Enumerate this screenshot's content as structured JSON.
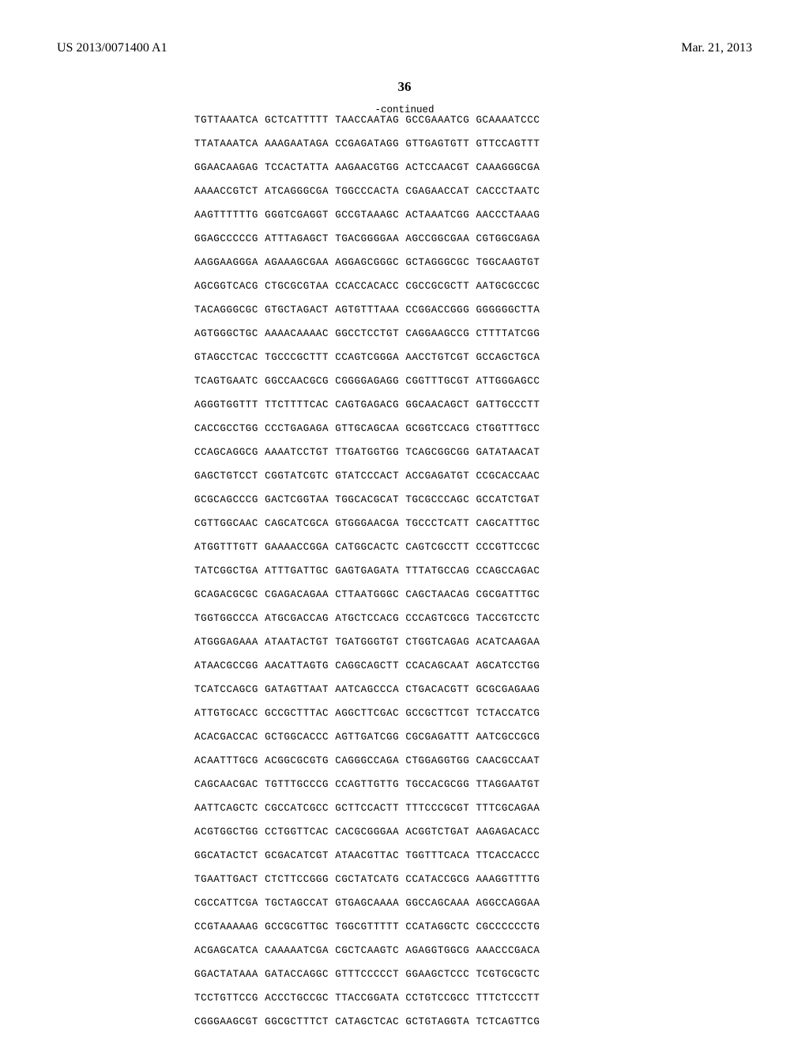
{
  "header": {
    "left": "US 2013/0071400 A1",
    "right": "Mar. 21, 2013"
  },
  "page_number": "36",
  "continued_label": "-continued",
  "sequence_lines": [
    "TGTTAAATCA GCTCATTTTT TAACCAATAG GCCGAAATCG GCAAAATCCC",
    "TTATAAATCA AAAGAATAGA CCGAGATAGG GTTGAGTGTT GTTCCAGTTT",
    "GGAACAAGAG TCCACTATTA AAGAACGTGG ACTCCAACGT CAAAGGGCGA",
    "AAAACCGTCT ATCAGGGCGA TGGCCCACTA CGAGAACCAT CACCCTAATC",
    "AAGTTTTTTG GGGTCGAGGT GCCGTAAAGC ACTAAATCGG AACCCTAAAG",
    "GGAGCCCCCG ATTTAGAGCT TGACGGGGAA AGCCGGCGAA CGTGGCGAGA",
    "AAGGAAGGGA AGAAAGCGAA AGGAGCGGGC GCTAGGGCGC TGGCAAGTGT",
    "AGCGGTCACG CTGCGCGTAA CCACCACACC CGCCGCGCTT AATGCGCCGC",
    "TACAGGGCGC GTGCTAGACT AGTGTTTAAA CCGGACCGGG GGGGGGCTTA",
    "AGTGGGCTGC AAAACAAAAC GGCCTCCTGT CAGGAAGCCG CTTTTATCGG",
    "GTAGCCTCAC TGCCCGCTTT CCAGTCGGGA AACCTGTCGT GCCAGCTGCA",
    "TCAGTGAATC GGCCAACGCG CGGGGAGAGG CGGTTTGCGT ATTGGGAGCC",
    "AGGGTGGTTT TTCTTTTCAC CAGTGAGACG GGCAACAGCT GATTGCCCTT",
    "CACCGCCTGG CCCTGAGAGA GTTGCAGCAA GCGGTCCACG CTGGTTTGCC",
    "CCAGCAGGCG AAAATCCTGT TTGATGGTGG TCAGCGGCGG GATATAACAT",
    "GAGCTGTCCT CGGTATCGTC GTATCCCACT ACCGAGATGT CCGCACCAAC",
    "GCGCAGCCCG GACTCGGTAA TGGCACGCAT TGCGCCCAGC GCCATCTGAT",
    "CGTTGGCAAC CAGCATCGCA GTGGGAACGA TGCCCTCATT CAGCATTTGC",
    "ATGGTTTGTT GAAAACCGGA CATGGCACTC CAGTCGCCTT CCCGTTCCGC",
    "TATCGGCTGA ATTTGATTGC GAGTGAGATA TTTATGCCAG CCAGCCAGAC",
    "GCAGACGCGC CGAGACAGAA CTTAATGGGC CAGCTAACAG CGCGATTTGC",
    "TGGTGGCCCA ATGCGACCAG ATGCTCCACG CCCAGTCGCG TACCGTCCTC",
    "ATGGGAGAAA ATAATACTGT TGATGGGTGT CTGGTCAGAG ACATCAAGAA",
    "ATAACGCCGG AACATTAGTG CAGGCAGCTT CCACAGCAAT AGCATCCTGG",
    "TCATCCAGCG GATAGTTAAT AATCAGCCCA CTGACACGTT GCGCGAGAAG",
    "ATTGTGCACC GCCGCTTTAC AGGCTTCGAC GCCGCTTCGT TCTACCATCG",
    "ACACGACCAC GCTGGCACCC AGTTGATCGG CGCGAGATTT AATCGCCGCG",
    "ACAATTTGCG ACGGCGCGTG CAGGGCCAGA CTGGAGGTGG CAACGCCAAT",
    "CAGCAACGAC TGTTTGCCCG CCAGTTGTTG TGCCACGCGG TTAGGAATGT",
    "AATTCAGCTC CGCCATCGCC GCTTCCACTT TTTCCCGCGT TTTCGCAGAA",
    "ACGTGGCTGG CCTGGTTCAC CACGCGGGAA ACGGTCTGAT AAGAGACACC",
    "GGCATACTCT GCGACATCGT ATAACGTTAC TGGTTTCACA TTCACCACCC",
    "TGAATTGACT CTCTTCCGGG CGCTATCATG CCATACCGCG AAAGGTTTTG",
    "CGCCATTCGA TGCTAGCCAT GTGAGCAAAA GGCCAGCAAA AGGCCAGGAA",
    "CCGTAAAAAG GCCGCGTTGC TGGCGTTTTT CCATAGGCTC CGCCCCCCTG",
    "ACGAGCATCA CAAAAATCGA CGCTCAAGTC AGAGGTGGCG AAACCCGACA",
    "GGACTATAAA GATACCAGGC GTTTCCCCCT GGAAGCTCCC TCGTGCGCTC",
    "TCCTGTTCCG ACCCTGCCGC TTACCGGATA CCTGTCCGCC TTTCTCCCTT",
    "CGGGAAGCGT GGCGCTTTCT CATAGCTCAC GCTGTAGGTA TCTCAGTTCG"
  ]
}
